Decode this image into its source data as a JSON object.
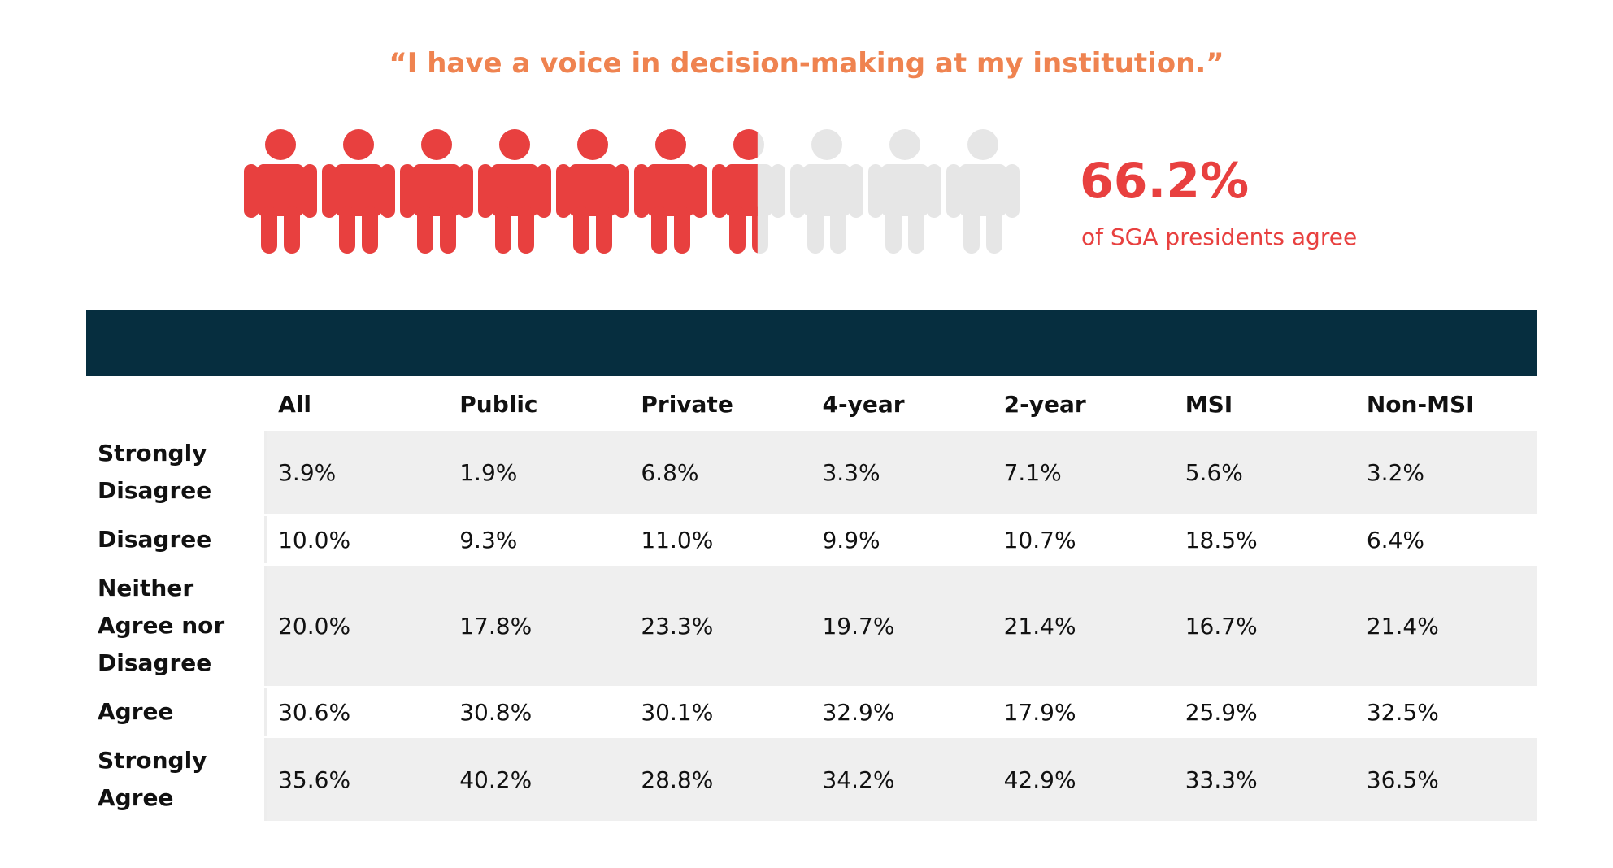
{
  "title": "“I have a voice in decision-making at my institution.”",
  "stat": {
    "value": "66.2%",
    "label": "of SGA presidents agree",
    "fraction": 0.662,
    "icon_count": 10
  },
  "colors": {
    "quote": "#ef8350",
    "accent": "#e8403f",
    "icon_inactive": "#e6e6e6",
    "header_bar": "#062e3f",
    "row_shade": "#efefef"
  },
  "chart_data": {
    "type": "table",
    "title": "“I have a voice in decision-making at my institution.”",
    "columns": [
      "All",
      "Public",
      "Private",
      "4-year",
      "2-year",
      "MSI",
      "Non-MSI"
    ],
    "rows": [
      {
        "label": "Strongly Disagree",
        "values": [
          "3.9%",
          "1.9%",
          "6.8%",
          "3.3%",
          "7.1%",
          "5.6%",
          "3.2%"
        ]
      },
      {
        "label": "Disagree",
        "values": [
          "10.0%",
          "9.3%",
          "11.0%",
          "9.9%",
          "10.7%",
          "18.5%",
          "6.4%"
        ]
      },
      {
        "label": "Neither Agree nor Disagree",
        "values": [
          "20.0%",
          "17.8%",
          "23.3%",
          "19.7%",
          "21.4%",
          "16.7%",
          "21.4%"
        ]
      },
      {
        "label": "Agree",
        "values": [
          "30.6%",
          "30.8%",
          "30.1%",
          "32.9%",
          "17.9%",
          "25.9%",
          "32.5%"
        ]
      },
      {
        "label": "Strongly Agree",
        "values": [
          "35.6%",
          "40.2%",
          "28.8%",
          "34.2%",
          "42.9%",
          "33.3%",
          "36.5%"
        ]
      }
    ]
  }
}
